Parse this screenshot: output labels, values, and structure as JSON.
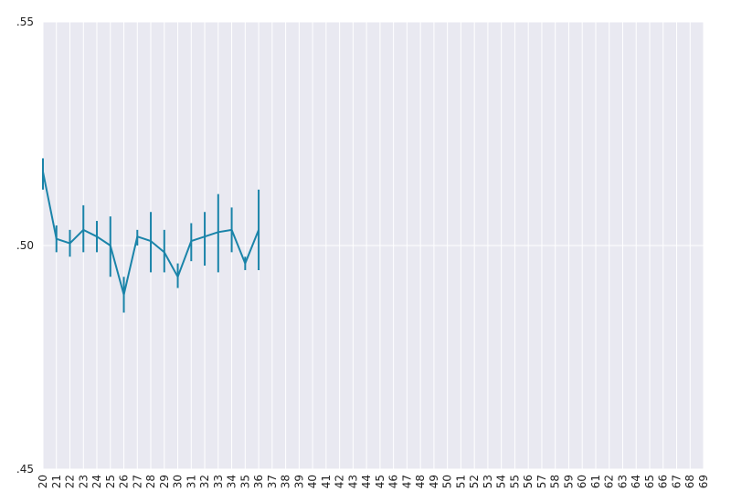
{
  "chart_data": {
    "type": "line",
    "title": "",
    "xlabel": "",
    "ylabel": "",
    "x_categories": [
      "20",
      "21",
      "22",
      "23",
      "24",
      "25",
      "26",
      "27",
      "28",
      "29",
      "30",
      "31",
      "32",
      "33",
      "34",
      "35",
      "36",
      "37",
      "38",
      "39",
      "40",
      "41",
      "42",
      "43",
      "44",
      "45",
      "46",
      "47",
      "48",
      "49",
      "50",
      "51",
      "52",
      "53",
      "54",
      "55",
      "56",
      "57",
      "58",
      "59",
      "60",
      "61",
      "62",
      "63",
      "64",
      "65",
      "66",
      "67",
      "68",
      "69"
    ],
    "y_ticks": [
      ".45",
      ".50",
      ".55"
    ],
    "ylim": [
      0.45,
      0.55
    ],
    "grid": true,
    "colors": {
      "background": "#e9e9f1",
      "grid": "#ffffff",
      "line": "#1a84a9"
    },
    "series": [
      {
        "points": [
          {
            "x": "20",
            "y": 0.5165,
            "lo": 0.5125,
            "hi": 0.5195
          },
          {
            "x": "21",
            "y": 0.5015,
            "lo": 0.4985,
            "hi": 0.5045
          },
          {
            "x": "22",
            "y": 0.5005,
            "lo": 0.4975,
            "hi": 0.5035
          },
          {
            "x": "23",
            "y": 0.5035,
            "lo": 0.4985,
            "hi": 0.509
          },
          {
            "x": "24",
            "y": 0.502,
            "lo": 0.4985,
            "hi": 0.5055
          },
          {
            "x": "25",
            "y": 0.5,
            "lo": 0.493,
            "hi": 0.5065
          },
          {
            "x": "26",
            "y": 0.489,
            "lo": 0.485,
            "hi": 0.493
          },
          {
            "x": "27",
            "y": 0.502,
            "lo": 0.5,
            "hi": 0.5035
          },
          {
            "x": "28",
            "y": 0.501,
            "lo": 0.494,
            "hi": 0.5075
          },
          {
            "x": "29",
            "y": 0.4985,
            "lo": 0.494,
            "hi": 0.5035
          },
          {
            "x": "30",
            "y": 0.493,
            "lo": 0.4905,
            "hi": 0.496
          },
          {
            "x": "31",
            "y": 0.501,
            "lo": 0.4965,
            "hi": 0.505
          },
          {
            "x": "32",
            "y": 0.502,
            "lo": 0.4955,
            "hi": 0.5075
          },
          {
            "x": "33",
            "y": 0.503,
            "lo": 0.494,
            "hi": 0.5115
          },
          {
            "x": "34",
            "y": 0.5035,
            "lo": 0.4985,
            "hi": 0.5085
          },
          {
            "x": "35",
            "y": 0.496,
            "lo": 0.4945,
            "hi": 0.4975
          },
          {
            "x": "36",
            "y": 0.5035,
            "lo": 0.4945,
            "hi": 0.5125
          }
        ]
      }
    ]
  }
}
